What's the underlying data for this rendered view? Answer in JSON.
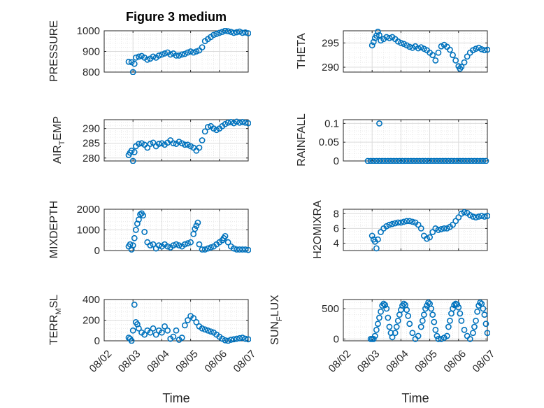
{
  "figure": {
    "title": "Figure 3 medium",
    "xlabel": "Time",
    "marker_color": "#0072BD",
    "x_tick_labels": [
      "08/02",
      "08/03",
      "08/04",
      "08/05",
      "08/06",
      "08/07"
    ]
  },
  "chart_data": [
    {
      "type": "scatter",
      "ylabel": "PRESSURE",
      "ylim": [
        800,
        1000
      ],
      "yticks": [
        800,
        900,
        1000
      ],
      "ytick_labels": [
        "800",
        "900",
        "1000"
      ],
      "xlim": [
        0,
        5
      ],
      "grid": true,
      "title": "Figure 3 medium",
      "x": [
        0.85,
        0.95,
        1.0,
        1.05,
        1.1,
        1.2,
        1.3,
        1.4,
        1.5,
        1.6,
        1.7,
        1.8,
        1.9,
        2.0,
        2.1,
        2.2,
        2.3,
        2.4,
        2.5,
        2.6,
        2.7,
        2.8,
        2.9,
        3.0,
        3.1,
        3.2,
        3.3,
        3.4,
        3.5,
        3.6,
        3.7,
        3.8,
        3.9,
        4.0,
        4.1,
        4.2,
        4.3,
        4.4,
        4.5,
        4.6,
        4.7,
        4.8,
        4.9,
        5.0
      ],
      "y": [
        850,
        848,
        800,
        840,
        870,
        875,
        878,
        870,
        860,
        865,
        875,
        870,
        880,
        885,
        890,
        895,
        885,
        890,
        880,
        880,
        885,
        888,
        895,
        900,
        895,
        900,
        905,
        920,
        950,
        960,
        970,
        980,
        985,
        990,
        995,
        1000,
        998,
        995,
        990,
        993,
        996,
        990,
        992,
        988
      ]
    },
    {
      "type": "scatter",
      "ylabel": "THETA",
      "ylim": [
        289,
        297.5
      ],
      "yticks": [
        290,
        295
      ],
      "ytick_labels": [
        "290",
        "295"
      ],
      "xlim": [
        0,
        5
      ],
      "grid": true,
      "x": [
        1.0,
        1.05,
        1.1,
        1.15,
        1.2,
        1.25,
        1.3,
        1.4,
        1.5,
        1.6,
        1.7,
        1.8,
        1.9,
        2.0,
        2.1,
        2.2,
        2.3,
        2.4,
        2.5,
        2.6,
        2.7,
        2.8,
        2.9,
        3.0,
        3.1,
        3.2,
        3.3,
        3.4,
        3.5,
        3.6,
        3.7,
        3.8,
        3.9,
        4.0,
        4.05,
        4.1,
        4.2,
        4.3,
        4.4,
        4.5,
        4.6,
        4.7,
        4.8,
        4.9,
        5.0
      ],
      "y": [
        294.5,
        295.2,
        296.0,
        296.5,
        297.3,
        296.6,
        295.5,
        295.8,
        296.2,
        296.0,
        296.2,
        295.8,
        295.3,
        295.0,
        294.8,
        294.5,
        294.2,
        294.0,
        294.3,
        293.9,
        294.1,
        293.8,
        293.5,
        293.0,
        292.5,
        291.4,
        293.0,
        294.3,
        294.6,
        294.2,
        293.6,
        292.5,
        291.4,
        290.2,
        289.7,
        290.1,
        291.0,
        292.2,
        293.0,
        293.5,
        293.8,
        294.0,
        293.7,
        293.5,
        293.6
      ]
    },
    {
      "type": "scatter",
      "ylabel": "AIR_TEMP",
      "ylim": [
        279,
        293
      ],
      "yticks": [
        280,
        285,
        290
      ],
      "ytick_labels": [
        "280",
        "285",
        "290"
      ],
      "xlim": [
        0,
        5
      ],
      "grid": true,
      "x": [
        0.85,
        0.9,
        0.95,
        1.0,
        1.05,
        1.1,
        1.2,
        1.3,
        1.4,
        1.5,
        1.6,
        1.7,
        1.8,
        1.9,
        2.0,
        2.1,
        2.2,
        2.3,
        2.4,
        2.5,
        2.6,
        2.7,
        2.8,
        2.9,
        3.0,
        3.1,
        3.2,
        3.3,
        3.4,
        3.5,
        3.6,
        3.7,
        3.8,
        3.9,
        4.0,
        4.1,
        4.2,
        4.3,
        4.4,
        4.5,
        4.6,
        4.7,
        4.8,
        4.9,
        5.0
      ],
      "y": [
        281.0,
        281.8,
        282.5,
        279.0,
        282.0,
        284.0,
        284.8,
        285.0,
        284.5,
        283.5,
        284.8,
        285.2,
        284.0,
        284.8,
        285.0,
        284.5,
        285.2,
        286.0,
        285.0,
        284.8,
        285.5,
        285.0,
        284.5,
        284.5,
        284.0,
        283.5,
        282.5,
        283.5,
        286.0,
        289.0,
        290.5,
        290.8,
        290.0,
        289.5,
        290.0,
        290.8,
        291.5,
        292.0,
        292.2,
        291.8,
        292.3,
        292.0,
        292.2,
        292.0,
        291.8
      ]
    },
    {
      "type": "scatter",
      "ylabel": "RAINFALL",
      "ylim": [
        0,
        0.11
      ],
      "yticks": [
        0,
        0.05,
        0.1
      ],
      "ytick_labels": [
        "0",
        "0.05",
        "0.1"
      ],
      "xlim": [
        0,
        5
      ],
      "grid": true,
      "x": [
        0.85,
        0.95,
        1.05,
        1.15,
        1.25,
        1.35,
        1.45,
        1.55,
        1.65,
        1.75,
        1.85,
        1.95,
        2.05,
        2.15,
        2.25,
        2.35,
        2.45,
        2.55,
        2.65,
        2.75,
        2.85,
        2.95,
        3.05,
        3.15,
        3.25,
        3.35,
        3.45,
        3.55,
        3.65,
        3.75,
        3.85,
        3.95,
        4.05,
        4.15,
        4.25,
        4.35,
        4.45,
        4.55,
        4.65,
        4.75,
        4.85,
        4.95,
        1.25
      ],
      "y": [
        0,
        0,
        0,
        0,
        0,
        0,
        0,
        0,
        0,
        0,
        0,
        0,
        0,
        0,
        0,
        0,
        0,
        0,
        0,
        0,
        0,
        0,
        0,
        0,
        0,
        0,
        0,
        0,
        0,
        0,
        0,
        0,
        0,
        0,
        0,
        0,
        0,
        0,
        0,
        0,
        0,
        0,
        0.1
      ]
    },
    {
      "type": "scatter",
      "ylabel": "MIXDEPTH",
      "ylim": [
        0,
        2000
      ],
      "yticks": [
        0,
        1000,
        2000
      ],
      "ytick_labels": [
        "0",
        "1000",
        "2000"
      ],
      "xlim": [
        0,
        5
      ],
      "grid": true,
      "x": [
        0.85,
        0.9,
        0.95,
        1.0,
        1.05,
        1.1,
        1.15,
        1.2,
        1.25,
        1.3,
        1.35,
        1.4,
        1.5,
        1.6,
        1.7,
        1.8,
        1.9,
        2.0,
        2.1,
        2.2,
        2.3,
        2.4,
        2.5,
        2.6,
        2.7,
        2.8,
        2.9,
        3.0,
        3.1,
        3.15,
        3.2,
        3.25,
        3.3,
        3.4,
        3.5,
        3.6,
        3.7,
        3.8,
        3.9,
        4.0,
        4.1,
        4.15,
        4.2,
        4.3,
        4.4,
        4.5,
        4.6,
        4.7,
        4.8,
        4.9,
        5.0
      ],
      "y": [
        200,
        300,
        50,
        250,
        600,
        1000,
        1300,
        1500,
        1750,
        1800,
        1700,
        900,
        400,
        250,
        300,
        100,
        250,
        200,
        300,
        200,
        150,
        250,
        300,
        250,
        200,
        300,
        350,
        400,
        800,
        1050,
        1200,
        1350,
        300,
        50,
        50,
        100,
        150,
        200,
        300,
        400,
        500,
        600,
        700,
        400,
        200,
        100,
        50,
        50,
        50,
        50,
        30
      ]
    },
    {
      "type": "scatter",
      "ylabel": "H2OMIXRA",
      "ylim": [
        3,
        8.6
      ],
      "yticks": [
        4,
        6,
        8
      ],
      "ytick_labels": [
        "4",
        "6",
        "8"
      ],
      "xlim": [
        0,
        5
      ],
      "grid": true,
      "x": [
        1.0,
        1.05,
        1.1,
        1.15,
        1.2,
        1.3,
        1.4,
        1.5,
        1.6,
        1.7,
        1.8,
        1.9,
        2.0,
        2.1,
        2.2,
        2.3,
        2.4,
        2.5,
        2.6,
        2.7,
        2.8,
        2.9,
        3.0,
        3.1,
        3.2,
        3.3,
        3.4,
        3.5,
        3.6,
        3.7,
        3.8,
        3.9,
        4.0,
        4.1,
        4.2,
        4.3,
        4.4,
        4.5,
        4.6,
        4.7,
        4.8,
        4.9,
        5.0
      ],
      "y": [
        5.0,
        4.5,
        4.2,
        3.3,
        4.5,
        5.5,
        6.0,
        6.3,
        6.5,
        6.6,
        6.7,
        6.8,
        6.8,
        6.9,
        7.0,
        7.0,
        6.9,
        6.8,
        6.5,
        6.0,
        5.0,
        4.6,
        4.8,
        5.5,
        6.0,
        5.8,
        5.9,
        6.0,
        6.0,
        6.2,
        6.5,
        7.0,
        7.5,
        8.0,
        8.2,
        8.1,
        7.8,
        7.6,
        7.5,
        7.6,
        7.7,
        7.6,
        7.7
      ]
    },
    {
      "type": "scatter",
      "ylabel": "TERR_MSL",
      "ylim": [
        0,
        400
      ],
      "yticks": [
        0,
        200,
        400
      ],
      "ytick_labels": [
        "0",
        "200",
        "400"
      ],
      "xlim": [
        0,
        5
      ],
      "grid": true,
      "x": [
        0.85,
        0.9,
        0.95,
        1.0,
        1.05,
        1.1,
        1.15,
        1.2,
        1.3,
        1.4,
        1.5,
        1.6,
        1.7,
        1.8,
        1.9,
        2.0,
        2.1,
        2.2,
        2.3,
        2.4,
        2.5,
        2.6,
        2.7,
        2.8,
        2.9,
        3.0,
        3.1,
        3.2,
        3.3,
        3.4,
        3.5,
        3.6,
        3.7,
        3.8,
        3.9,
        4.0,
        4.1,
        4.2,
        4.3,
        4.4,
        4.5,
        4.6,
        4.7,
        4.8,
        4.9,
        5.0
      ],
      "y": [
        30,
        20,
        0,
        100,
        350,
        180,
        160,
        120,
        80,
        60,
        100,
        80,
        120,
        60,
        100,
        80,
        140,
        100,
        20,
        40,
        100,
        10,
        30,
        150,
        200,
        240,
        220,
        180,
        140,
        120,
        110,
        100,
        90,
        80,
        60,
        40,
        20,
        5,
        0,
        10,
        15,
        20,
        25,
        30,
        20,
        15
      ]
    },
    {
      "type": "scatter",
      "ylabel": "SUN_FLUX",
      "ylim": [
        -30,
        650
      ],
      "yticks": [
        0,
        500
      ],
      "ytick_labels": [
        "0",
        "500"
      ],
      "xlim": [
        0,
        5
      ],
      "grid": true,
      "x": [
        0.95,
        1.0,
        1.05,
        1.1,
        1.15,
        1.2,
        1.25,
        1.3,
        1.35,
        1.4,
        1.45,
        1.5,
        1.55,
        1.6,
        1.65,
        1.7,
        1.8,
        1.85,
        1.9,
        1.95,
        2.0,
        2.05,
        2.1,
        2.15,
        2.2,
        2.25,
        2.3,
        2.4,
        2.5,
        2.6,
        2.7,
        2.75,
        2.8,
        2.85,
        2.9,
        2.95,
        3.0,
        3.05,
        3.1,
        3.15,
        3.2,
        3.25,
        3.3,
        3.4,
        3.5,
        3.6,
        3.65,
        3.7,
        3.75,
        3.8,
        3.85,
        3.9,
        3.95,
        4.0,
        4.05,
        4.1,
        4.2,
        4.3,
        4.4,
        4.5,
        4.55,
        4.6,
        4.65,
        4.7,
        4.75,
        4.8,
        4.85,
        4.9,
        4.95,
        5.0
      ],
      "y": [
        0,
        0,
        0,
        50,
        150,
        250,
        350,
        450,
        550,
        580,
        560,
        500,
        350,
        200,
        100,
        30,
        100,
        200,
        300,
        400,
        480,
        550,
        580,
        560,
        480,
        380,
        250,
        100,
        0,
        50,
        200,
        300,
        400,
        500,
        550,
        600,
        580,
        500,
        400,
        280,
        150,
        50,
        0,
        0,
        20,
        50,
        200,
        300,
        420,
        500,
        560,
        580,
        570,
        520,
        420,
        300,
        150,
        50,
        0,
        100,
        200,
        300,
        450,
        550,
        600,
        580,
        500,
        400,
        250,
        100
      ]
    }
  ]
}
